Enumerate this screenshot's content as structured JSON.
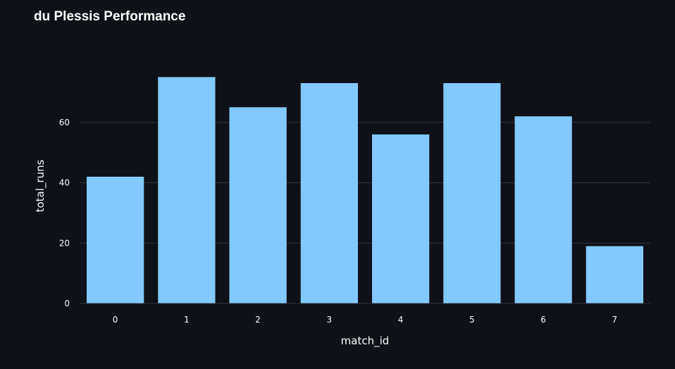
{
  "chart_data": {
    "type": "bar",
    "title": "du Plessis Performance",
    "xlabel": "match_id",
    "ylabel": "total_runs",
    "categories": [
      "0",
      "1",
      "2",
      "3",
      "4",
      "5",
      "6",
      "7"
    ],
    "values": [
      42,
      75,
      65,
      73,
      56,
      73,
      62,
      19
    ],
    "yticks": [
      0,
      20,
      40,
      60
    ],
    "ylim": [
      0,
      80
    ],
    "grid": true,
    "bar_color": "#83c9ff",
    "background": "#0e1117",
    "grid_color": "#31333f"
  }
}
